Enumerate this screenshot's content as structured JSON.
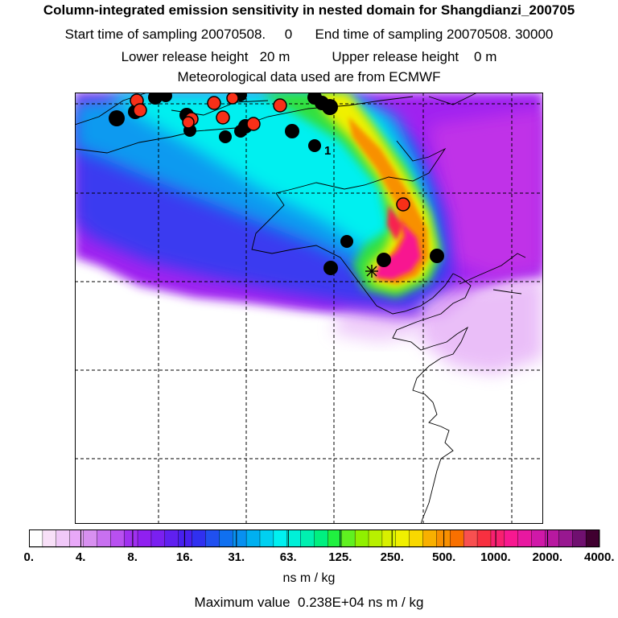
{
  "title": "Column-integrated emission sensitivity in nested domain for Shangdianzi_200705",
  "line2": "Start time of sampling 20070508.     0      End time of sampling 20070508. 30000",
  "line3": "Lower release height   20 m           Upper release height    0 m",
  "line4": "Meteorological data used are from ECMWF",
  "map": {
    "marker_label": "1",
    "colors": {
      "white": "#ffffff",
      "violet_light": "#e8b8f8",
      "violet": "#a020f0",
      "magenta": "#c030e8",
      "blue": "#3a3af0",
      "azure": "#0a9af0",
      "cyan": "#00f0f0",
      "green": "#30e040",
      "yellow": "#f0f000",
      "orange": "#f89000",
      "red": "#f82050",
      "pink": "#f81890"
    }
  },
  "colorbar": {
    "unit": "ns m / kg",
    "tick_labels": [
      "0.",
      "4.",
      "8.",
      "16.",
      "31.",
      "63.",
      "125.",
      "250.",
      "500.",
      "1000.",
      "2000.",
      "4000."
    ],
    "colors": [
      "#ffffff",
      "#f8e0f8",
      "#f0c8f8",
      "#e8a8f8",
      "#d890f0",
      "#c870f0",
      "#b850f0",
      "#a030f0",
      "#9020f0",
      "#7a20f0",
      "#6020f0",
      "#4820f0",
      "#3030f0",
      "#2050f0",
      "#1070f0",
      "#0890f0",
      "#00b0f0",
      "#00d0f0",
      "#00f0f0",
      "#00f0d8",
      "#00f0b0",
      "#00f080",
      "#20f040",
      "#60f020",
      "#90f000",
      "#b8f000",
      "#d8f000",
      "#f0f000",
      "#f8d800",
      "#f8b000",
      "#f89000",
      "#f87000",
      "#f85050",
      "#f83040",
      "#f82070",
      "#f81890",
      "#e818a0",
      "#d018a8",
      "#b818a0",
      "#981890",
      "#701070",
      "#400030"
    ]
  },
  "max_value": "Maximum value  0.238E+04 ns m / kg"
}
